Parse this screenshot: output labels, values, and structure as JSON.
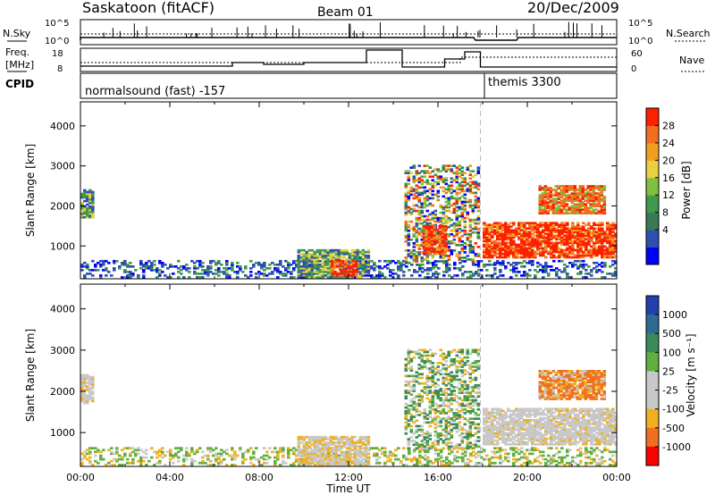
{
  "header": {
    "station": "Saskatoon (fitACF)",
    "beam": "Beam 01",
    "date": "20/Dec/2009"
  },
  "top_panels": {
    "nsky_label": "N.Sky",
    "nsky_ticks": [
      "10^5",
      "10^0"
    ],
    "nsearch_label": "N.Search",
    "nsearch_ticks": [
      "10^5",
      "10^0"
    ],
    "freq_label": "Freq.",
    "freq_unit": "[MHz]",
    "freq_ticks": [
      "18",
      "8"
    ],
    "nave_label": "Nave",
    "nave_ticks": [
      "60",
      "0"
    ],
    "cpid_label": "CPID",
    "cpid_segments": [
      {
        "name": "normalsound (fast) -157",
        "start_h": 0,
        "end_h": 18
      },
      {
        "name": "themis 3300",
        "start_h": 18,
        "end_h": 24
      }
    ]
  },
  "colors": {
    "power_scale": [
      "#0000ff",
      "#2f4fb0",
      "#3a7a55",
      "#3f9a4a",
      "#7fc040",
      "#e8d040",
      "#f0a020",
      "#f07020",
      "#ff2000"
    ],
    "velocity_scale": [
      "#2040b0",
      "#306a90",
      "#3a8a5a",
      "#60b040",
      "#c8c8c8",
      "#c8c8c8",
      "#f0b020",
      "#f07020",
      "#ff4010",
      "#ff0000"
    ],
    "gray": "#c8c8c8"
  },
  "chart_data": [
    {
      "type": "heatmap",
      "panel": "power",
      "ylabel": "Slant Range [km]",
      "xlabel": "",
      "x_ticks": [
        "00:00",
        "04:00",
        "08:00",
        "12:00",
        "16:00",
        "20:00",
        "00:00"
      ],
      "y_ticks": [
        1000,
        2000,
        3000,
        4000
      ],
      "ylim": [
        180,
        4600
      ],
      "xlim_hours": [
        0,
        24
      ],
      "colorbar_label": "Power [dB]",
      "colorbar_ticks": [
        "28",
        "24",
        "20",
        "16",
        "12",
        "8",
        "4"
      ],
      "regions": [
        {
          "t0": 0.0,
          "t1": 0.6,
          "r0": 1700,
          "r1": 2400,
          "level": "mid"
        },
        {
          "t0": 0.0,
          "t1": 24,
          "r0": 200,
          "r1": 650,
          "level": "low_sparse"
        },
        {
          "t0": 9.7,
          "t1": 12.9,
          "r0": 200,
          "r1": 900,
          "level": "mid"
        },
        {
          "t0": 11.2,
          "t1": 12.3,
          "r0": 250,
          "r1": 650,
          "level": "high"
        },
        {
          "t0": 14.5,
          "t1": 17.8,
          "r0": 600,
          "r1": 3000,
          "level": "mixed"
        },
        {
          "t0": 15.3,
          "t1": 16.3,
          "r0": 800,
          "r1": 1500,
          "level": "high"
        },
        {
          "t0": 18.0,
          "t1": 24,
          "r0": 700,
          "r1": 1600,
          "level": "high_band"
        },
        {
          "t0": 20.5,
          "t1": 23.4,
          "r0": 1800,
          "r1": 2500,
          "level": "mid_high"
        }
      ]
    },
    {
      "type": "heatmap",
      "panel": "velocity",
      "ylabel": "Slant Range [km]",
      "xlabel": "Time UT",
      "x_ticks": [
        "00:00",
        "04:00",
        "08:00",
        "12:00",
        "16:00",
        "20:00",
        "00:00"
      ],
      "y_ticks": [
        1000,
        2000,
        3000,
        4000
      ],
      "ylim": [
        180,
        4600
      ],
      "xlim_hours": [
        0,
        24
      ],
      "colorbar_label": "Velocity [m s⁻¹]",
      "colorbar_ticks": [
        "1000",
        "500",
        "100",
        "25",
        "-25",
        "-100",
        "-500",
        "-1000"
      ],
      "regions": [
        {
          "t0": 0.0,
          "t1": 0.6,
          "r0": 1700,
          "r1": 2400,
          "level": "gray"
        },
        {
          "t0": 0.0,
          "t1": 24,
          "r0": 200,
          "r1": 650,
          "level": "low_sparse"
        },
        {
          "t0": 9.7,
          "t1": 12.9,
          "r0": 200,
          "r1": 900,
          "level": "gray_orange"
        },
        {
          "t0": 14.5,
          "t1": 17.8,
          "r0": 600,
          "r1": 3000,
          "level": "mixed"
        },
        {
          "t0": 18.0,
          "t1": 24,
          "r0": 700,
          "r1": 1600,
          "level": "gray_band"
        },
        {
          "t0": 20.5,
          "t1": 23.4,
          "r0": 1800,
          "r1": 2500,
          "level": "orange"
        }
      ]
    }
  ]
}
